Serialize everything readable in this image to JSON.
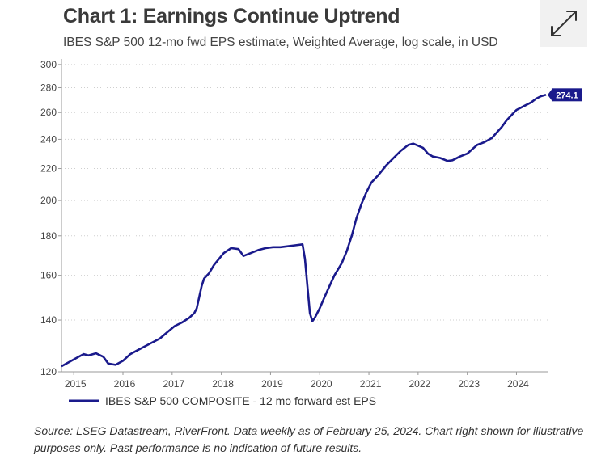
{
  "header": {
    "title": "Chart 1: Earnings Continue Uptrend",
    "subtitle": "IBES S&P 500 12-mo fwd EPS estimate, Weighted Average, log scale, in USD"
  },
  "controls": {
    "expand_icon": "expand-arrows-icon"
  },
  "chart_data": {
    "type": "line",
    "title": "Chart 1: Earnings Continue Uptrend",
    "subtitle": "IBES S&P 500 12-mo fwd EPS estimate, Weighted Average, log scale, in USD",
    "y_scale": "log",
    "ylim": [
      120,
      305
    ],
    "y_ticks": [
      120,
      140,
      160,
      180,
      200,
      220,
      240,
      260,
      280,
      300
    ],
    "xlim": [
      2014.75,
      2024.65
    ],
    "x_ticks": [
      2015,
      2016,
      2017,
      2018,
      2019,
      2020,
      2021,
      2022,
      2023,
      2024
    ],
    "grid": "horizontal-dotted",
    "legend_position": "bottom-left",
    "line_color": "#1a1a8c",
    "series": [
      {
        "name": "IBES S&P 500 COMPOSITE - 12 mo forward est EPS",
        "end_label": "274.1",
        "points": [
          [
            2014.75,
            122
          ],
          [
            2014.9,
            123.5
          ],
          [
            2015.0,
            124.5
          ],
          [
            2015.1,
            125.5
          ],
          [
            2015.2,
            126.5
          ],
          [
            2015.3,
            126
          ],
          [
            2015.45,
            126.8
          ],
          [
            2015.6,
            125.5
          ],
          [
            2015.7,
            123
          ],
          [
            2015.85,
            122.5
          ],
          [
            2016.0,
            124
          ],
          [
            2016.15,
            126.5
          ],
          [
            2016.3,
            128
          ],
          [
            2016.45,
            129.5
          ],
          [
            2016.6,
            131
          ],
          [
            2016.75,
            132.5
          ],
          [
            2016.9,
            135
          ],
          [
            2017.05,
            137.5
          ],
          [
            2017.2,
            139
          ],
          [
            2017.35,
            141
          ],
          [
            2017.45,
            143
          ],
          [
            2017.5,
            145
          ],
          [
            2017.55,
            150
          ],
          [
            2017.6,
            155
          ],
          [
            2017.65,
            158.5
          ],
          [
            2017.75,
            161
          ],
          [
            2017.85,
            165
          ],
          [
            2017.95,
            168
          ],
          [
            2018.05,
            171
          ],
          [
            2018.2,
            173.5
          ],
          [
            2018.35,
            173
          ],
          [
            2018.45,
            169.5
          ],
          [
            2018.6,
            171
          ],
          [
            2018.75,
            172.5
          ],
          [
            2018.9,
            173.5
          ],
          [
            2019.05,
            174
          ],
          [
            2019.2,
            174
          ],
          [
            2019.35,
            174.5
          ],
          [
            2019.5,
            175
          ],
          [
            2019.65,
            175.5
          ],
          [
            2019.7,
            168
          ],
          [
            2019.75,
            155
          ],
          [
            2019.8,
            143
          ],
          [
            2019.85,
            139.5
          ],
          [
            2019.9,
            141
          ],
          [
            2020.0,
            145
          ],
          [
            2020.1,
            150
          ],
          [
            2020.2,
            155
          ],
          [
            2020.3,
            160
          ],
          [
            2020.45,
            166
          ],
          [
            2020.55,
            172
          ],
          [
            2020.65,
            180
          ],
          [
            2020.75,
            190
          ],
          [
            2020.85,
            198
          ],
          [
            2020.95,
            205
          ],
          [
            2021.05,
            211
          ],
          [
            2021.2,
            216
          ],
          [
            2021.35,
            222
          ],
          [
            2021.5,
            227
          ],
          [
            2021.65,
            232
          ],
          [
            2021.8,
            236
          ],
          [
            2021.9,
            237
          ],
          [
            2022.0,
            235.5
          ],
          [
            2022.1,
            234
          ],
          [
            2022.2,
            230
          ],
          [
            2022.3,
            228
          ],
          [
            2022.45,
            227
          ],
          [
            2022.6,
            225
          ],
          [
            2022.7,
            225.5
          ],
          [
            2022.85,
            228
          ],
          [
            2023.0,
            230
          ],
          [
            2023.1,
            233
          ],
          [
            2023.2,
            236
          ],
          [
            2023.35,
            238
          ],
          [
            2023.5,
            241
          ],
          [
            2023.6,
            245
          ],
          [
            2023.7,
            249
          ],
          [
            2023.8,
            254
          ],
          [
            2023.9,
            258
          ],
          [
            2024.0,
            262
          ],
          [
            2024.15,
            265
          ],
          [
            2024.3,
            268
          ],
          [
            2024.4,
            271
          ],
          [
            2024.5,
            273
          ],
          [
            2024.6,
            274.1
          ]
        ]
      }
    ]
  },
  "source_note": "Source: LSEG Datastream, RiverFront. Data weekly as of February 25, 2024. Chart right shown for illustrative purposes only. Past performance is no indication of future results."
}
